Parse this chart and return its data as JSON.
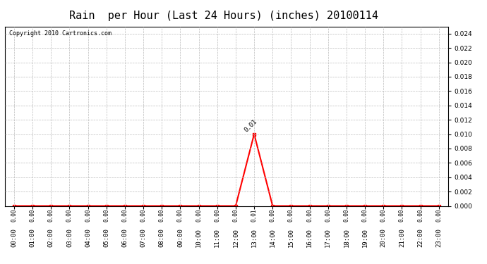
{
  "title": "Rain  per Hour (Last 24 Hours) (inches) 20100114",
  "copyright_text": "Copyright 2010 Cartronics.com",
  "hours": [
    0,
    1,
    2,
    3,
    4,
    5,
    6,
    7,
    8,
    9,
    10,
    11,
    12,
    13,
    14,
    15,
    16,
    17,
    18,
    19,
    20,
    21,
    22,
    23
  ],
  "values": [
    0,
    0,
    0,
    0,
    0,
    0,
    0,
    0,
    0,
    0,
    0,
    0,
    0,
    0.01,
    0,
    0,
    0,
    0,
    0,
    0,
    0,
    0,
    0,
    0
  ],
  "ylim": [
    0,
    0.025
  ],
  "yticks": [
    0.0,
    0.002,
    0.004,
    0.006,
    0.008,
    0.01,
    0.012,
    0.014,
    0.016,
    0.018,
    0.02,
    0.022,
    0.024
  ],
  "line_color": "#ff0000",
  "marker_color": "#ff0000",
  "grid_color": "#bbbbbb",
  "bg_color": "#ffffff",
  "title_fontsize": 11,
  "tick_fontsize": 6.5,
  "copyright_fontsize": 6,
  "annotation_value": "0.01",
  "peak_hour": 13,
  "peak_value": 0.01
}
